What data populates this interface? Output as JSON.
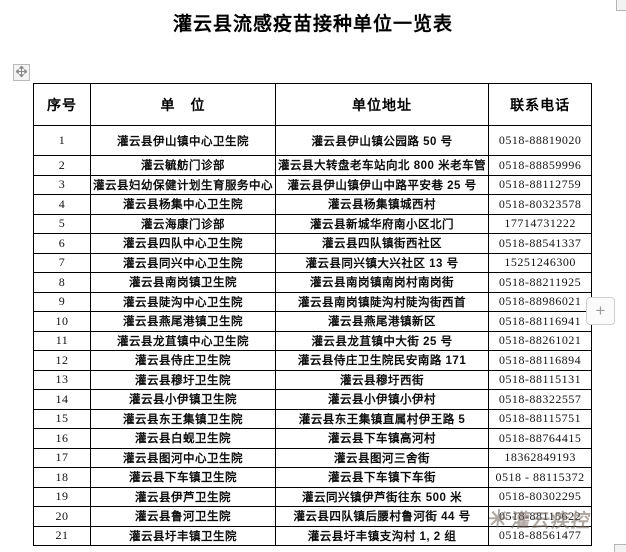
{
  "title": "灌云县流感疫苗接种单位一览表",
  "table": {
    "headers": [
      "序号",
      "单　位",
      "单位地址",
      "联系电话"
    ],
    "rows": [
      [
        "1",
        "灌云县伊山镇中心卫生院",
        "灌云县伊山镇公园路 50 号",
        "0518-88819020"
      ],
      [
        "2",
        "灌云毓舫门诊部",
        "灌云县大转盘老车站向北 800 米老车管",
        "0518-88859996"
      ],
      [
        "3",
        "灌云县妇幼保健计划生育服务中心",
        "灌云县伊山镇伊山中路平安巷 25 号",
        "0518-88112759"
      ],
      [
        "4",
        "灌云县杨集中心卫生院",
        "灌云县杨集镇城西村",
        "0518-80323578"
      ],
      [
        "5",
        "灌云海康门诊部",
        "灌云县新城华府南小区北门",
        "17714731222"
      ],
      [
        "6",
        "灌云县四队中心卫生院",
        "灌云县四队镇街西社区",
        "0518-88541337"
      ],
      [
        "7",
        "灌云县同兴中心卫生院",
        "灌云县同兴镇大兴社区 13 号",
        "15251246300"
      ],
      [
        "8",
        "灌云县南岗镇卫生院",
        "灌云县南岗镇南岗村南岗街",
        "0518-88211925"
      ],
      [
        "9",
        "灌云县陡沟中心卫生院",
        "灌云县南岗镇陡沟村陡沟街西首",
        "0518-88986021"
      ],
      [
        "10",
        "灌云县燕尾港镇卫生院",
        "灌云县燕尾港镇新区",
        "0518-88116941"
      ],
      [
        "11",
        "灌云县龙苴镇中心卫生院",
        "灌云县龙苴镇中大街 25 号",
        "0518-88261021"
      ],
      [
        "12",
        "灌云县侍庄卫生院",
        "灌云县侍庄卫生院民安南路 171",
        "0518-88116894"
      ],
      [
        "13",
        "灌云县穆圩卫生院",
        "灌云县穆圩西街",
        "0518-88115131"
      ],
      [
        "14",
        "灌云县小伊镇卫生院",
        "灌云县小伊镇小伊村",
        "0518-88322557"
      ],
      [
        "15",
        "灌云县东王集镇卫生院",
        "灌云县东王集镇直属村伊王路 5",
        "0518-88115751"
      ],
      [
        "16",
        "灌云县白蚬卫生院",
        "灌云县下车镇高河村",
        "0518-88764415"
      ],
      [
        "17",
        "灌云县图河中心卫生院",
        "灌云县图河三舍街",
        "18362849193"
      ],
      [
        "18",
        "灌云县下车镇卫生院",
        "灌云县下车镇下车街",
        "0518 - 88115372"
      ],
      [
        "19",
        "灌云县伊芦卫生院",
        "灌云同兴镇伊芦街往东 500 米",
        "0518-80302295"
      ],
      [
        "20",
        "灌云县鲁河卫生院",
        "灌云县四队镇后腰村鲁河街 44 号",
        "0518-88115622"
      ],
      [
        "21",
        "灌云县圩丰镇卫生院",
        "灌云县圩丰镇支沟村 1, 2 组",
        "0518-88561477"
      ]
    ]
  },
  "controls": {
    "plus_label": "+"
  },
  "watermark": {
    "logo": "✳",
    "text": "灌云疾控"
  },
  "colors": {
    "border": "#000000",
    "text": "#0d0d0d",
    "watermark": "rgba(128,117,106,0.62)"
  }
}
